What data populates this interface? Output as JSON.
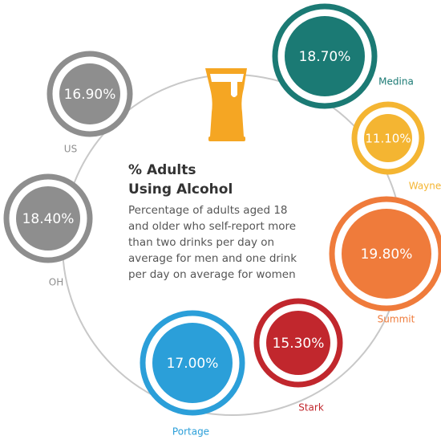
{
  "title": [
    "% Adults",
    "Using Alcohol"
  ],
  "description": [
    "Percentage of adults aged 18",
    "and older who self-report more",
    "than two drinks per day on",
    "average for men and one drink",
    "per day on average for women"
  ],
  "items": [
    {
      "label": "US",
      "value": "16.90%",
      "color": "#8e8e8e"
    },
    {
      "label": "OH",
      "value": "18.40%",
      "color": "#8e8e8e"
    },
    {
      "label": "Medina",
      "value": "18.70%",
      "color": "#1b7a74"
    },
    {
      "label": "Wayne",
      "value": "11.10%",
      "color": "#f4b532"
    },
    {
      "label": "Summit",
      "value": "19.80%",
      "color": "#ef7b3b"
    },
    {
      "label": "Stark",
      "value": "15.30%",
      "color": "#c1272d"
    },
    {
      "label": "Portage",
      "value": "17.00%",
      "color": "#2b9fd9"
    }
  ]
}
